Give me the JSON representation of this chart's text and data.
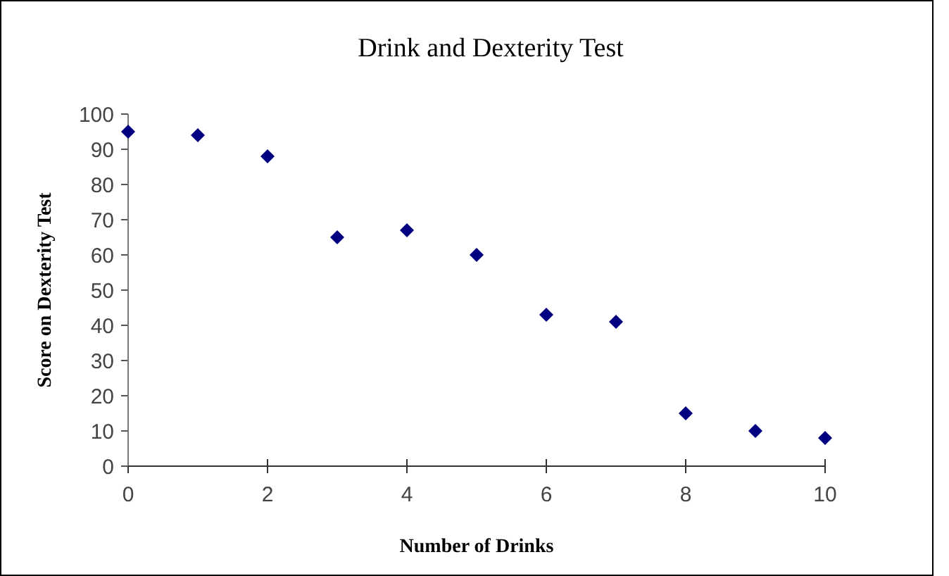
{
  "chart_data": {
    "type": "scatter",
    "title": "Drink and Dexterity Test",
    "xlabel": "Number of Drinks",
    "ylabel": "Score on Dexterity Test",
    "x": [
      0,
      1,
      2,
      3,
      4,
      5,
      6,
      7,
      8,
      9,
      10
    ],
    "series": [
      {
        "color": "#000080",
        "values": [
          95,
          94,
          88,
          65,
          67,
          60,
          43,
          41,
          15,
          10,
          8
        ]
      }
    ],
    "xlim": [
      0,
      10
    ],
    "xticks": [
      0,
      2,
      4,
      6,
      8,
      10
    ],
    "ylim": [
      0,
      100
    ],
    "yticks": [
      0,
      10,
      20,
      30,
      40,
      50,
      60,
      70,
      80,
      90,
      100
    ],
    "marker": "diamond",
    "grid": false
  }
}
